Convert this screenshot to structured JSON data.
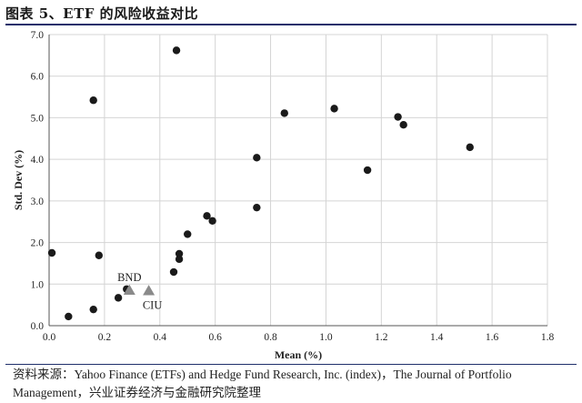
{
  "header": {
    "title": "图表 5、ETF 的风险收益对比"
  },
  "source_note": "资料来源：Yahoo Finance (ETFs) and Hedge Fund Research, Inc. (index)，The Journal of Portfolio Management，兴业证券经济与金融研究院整理",
  "chart_data": {
    "type": "scatter",
    "xlabel": "Mean (%)",
    "ylabel": "Std. Dev (%)",
    "xlim": [
      0.0,
      1.8
    ],
    "ylim": [
      0.0,
      7.0
    ],
    "xticks": [
      "0.0",
      "0.2",
      "0.4",
      "0.6",
      "0.8",
      "1.0",
      "1.2",
      "1.4",
      "1.6",
      "1.8"
    ],
    "yticks": [
      "0.0",
      "1.0",
      "2.0",
      "3.0",
      "4.0",
      "5.0",
      "6.0",
      "7.0"
    ],
    "grid": true,
    "colors": {
      "points": "#1a1a1a",
      "highlight": "#8a8a8a",
      "grid": "#d4d4d4",
      "axis": "#555555"
    },
    "points": [
      {
        "x": 0.01,
        "y": 1.75
      },
      {
        "x": 0.07,
        "y": 0.22
      },
      {
        "x": 0.16,
        "y": 0.39
      },
      {
        "x": 0.16,
        "y": 5.42
      },
      {
        "x": 0.18,
        "y": 1.69
      },
      {
        "x": 0.25,
        "y": 0.67
      },
      {
        "x": 0.28,
        "y": 0.88
      },
      {
        "x": 0.45,
        "y": 1.29
      },
      {
        "x": 0.46,
        "y": 6.62
      },
      {
        "x": 0.47,
        "y": 1.6
      },
      {
        "x": 0.47,
        "y": 1.73
      },
      {
        "x": 0.5,
        "y": 2.2
      },
      {
        "x": 0.57,
        "y": 2.64
      },
      {
        "x": 0.59,
        "y": 2.52
      },
      {
        "x": 0.75,
        "y": 4.04
      },
      {
        "x": 0.75,
        "y": 2.84
      },
      {
        "x": 0.85,
        "y": 5.11
      },
      {
        "x": 1.03,
        "y": 5.22
      },
      {
        "x": 1.15,
        "y": 3.74
      },
      {
        "x": 1.26,
        "y": 5.02
      },
      {
        "x": 1.28,
        "y": 4.83
      },
      {
        "x": 1.52,
        "y": 4.29
      }
    ],
    "highlighted": [
      {
        "label": "BND",
        "x": 0.29,
        "y": 0.85
      },
      {
        "label": "CIU",
        "x": 0.36,
        "y": 0.84
      }
    ]
  }
}
